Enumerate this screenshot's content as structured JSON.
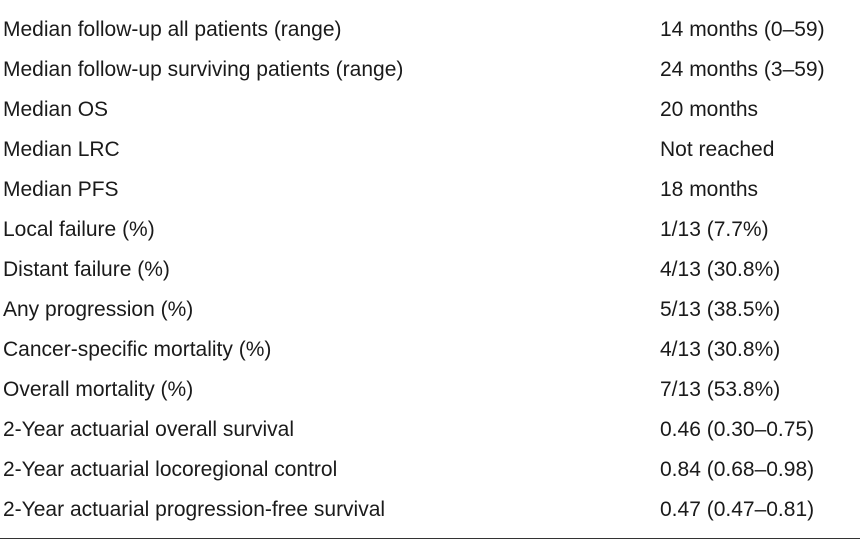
{
  "table": {
    "rows": [
      {
        "label": "Median follow-up all patients (range)",
        "value": "14 months (0–59)"
      },
      {
        "label": "Median follow-up surviving patients (range)",
        "value": "24 months (3–59)"
      },
      {
        "label": "Median OS",
        "value": "20 months"
      },
      {
        "label": "Median LRC",
        "value": "Not reached"
      },
      {
        "label": "Median PFS",
        "value": "18 months"
      },
      {
        "label": "Local failure (%)",
        "value": "1/13 (7.7%)"
      },
      {
        "label": "Distant failure (%)",
        "value": "4/13 (30.8%)"
      },
      {
        "label": "Any progression (%)",
        "value": "5/13 (38.5%)"
      },
      {
        "label": "Cancer-specific mortality (%)",
        "value": "4/13 (30.8%)"
      },
      {
        "label": "Overall mortality (%)",
        "value": "7/13 (53.8%)"
      },
      {
        "label": "2-Year actuarial overall survival",
        "value": "0.46 (0.30–0.75)"
      },
      {
        "label": "2-Year actuarial locoregional control",
        "value": "0.84 (0.68–0.98)"
      },
      {
        "label": "2-Year actuarial progression-free survival",
        "value": "0.47 (0.47–0.81)"
      }
    ]
  }
}
